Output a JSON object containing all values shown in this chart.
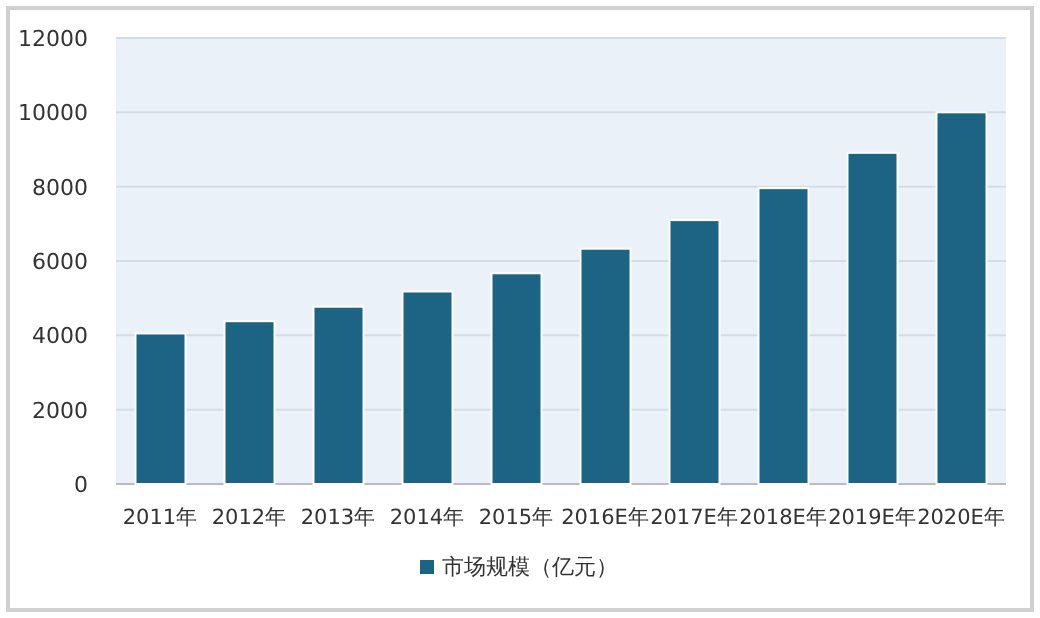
{
  "chart_data": {
    "type": "bar",
    "categories": [
      "2011年",
      "2012年",
      "2013年",
      "2014年",
      "2015年",
      "2016E年",
      "2017E年",
      "2018E年",
      "2019E年",
      "2020E年"
    ],
    "series": [
      {
        "name": "市场规模（亿元）",
        "color": "#1c6384",
        "values": [
          4050,
          4380,
          4770,
          5180,
          5670,
          6330,
          7100,
          7960,
          8910,
          10000
        ]
      }
    ],
    "ylim": [
      0,
      12000
    ],
    "yticks": [
      0,
      2000,
      4000,
      6000,
      8000,
      10000,
      12000
    ],
    "grid": "y",
    "legend": "bottom"
  }
}
